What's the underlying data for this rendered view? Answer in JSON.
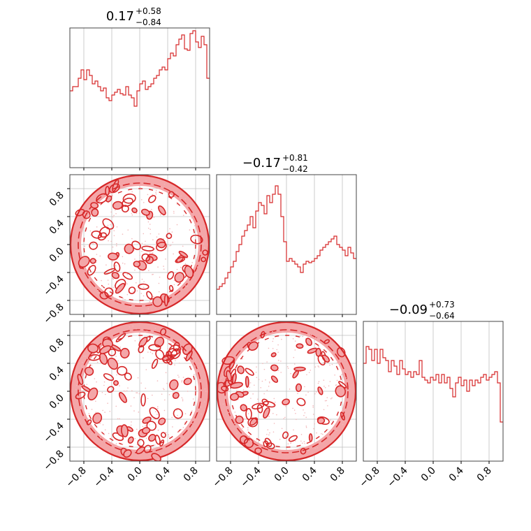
{
  "chart_data": {
    "type": "corner",
    "color": "#d62728",
    "fill_color": "#f4a6a8",
    "tick_values": [
      -0.8,
      -0.4,
      0.0,
      0.4,
      0.8
    ],
    "tick_labels": [
      "−0.8",
      "−0.4",
      "0.0",
      "0.4",
      "0.8"
    ],
    "range": [
      -1.0,
      1.0
    ],
    "grid": true,
    "titles": [
      {
        "value": "0.17",
        "plus": "+0.58",
        "minus": "−0.84"
      },
      {
        "value": "−0.17",
        "plus": "+0.81",
        "minus": "−0.42"
      },
      {
        "value": "−0.09",
        "plus": "+0.73",
        "minus": "−0.64"
      }
    ],
    "histograms": [
      {
        "bins": 50,
        "counts": [
          0.55,
          0.58,
          0.58,
          0.64,
          0.7,
          0.63,
          0.7,
          0.66,
          0.6,
          0.62,
          0.58,
          0.55,
          0.57,
          0.5,
          0.48,
          0.52,
          0.54,
          0.56,
          0.53,
          0.52,
          0.58,
          0.52,
          0.5,
          0.44,
          0.55,
          0.6,
          0.62,
          0.56,
          0.58,
          0.6,
          0.64,
          0.66,
          0.7,
          0.72,
          0.7,
          0.78,
          0.82,
          0.8,
          0.88,
          0.92,
          0.95,
          0.85,
          0.84,
          0.96,
          0.98,
          0.9,
          0.86,
          0.94,
          0.88,
          0.64
        ]
      },
      {
        "bins": 50,
        "counts": [
          0.18,
          0.2,
          0.22,
          0.26,
          0.3,
          0.34,
          0.38,
          0.45,
          0.5,
          0.56,
          0.6,
          0.64,
          0.7,
          0.62,
          0.74,
          0.8,
          0.78,
          0.72,
          0.85,
          0.8,
          0.86,
          0.92,
          0.86,
          0.7,
          0.52,
          0.38,
          0.4,
          0.38,
          0.36,
          0.34,
          0.3,
          0.36,
          0.38,
          0.37,
          0.38,
          0.4,
          0.42,
          0.46,
          0.48,
          0.5,
          0.52,
          0.54,
          0.56,
          0.5,
          0.48,
          0.46,
          0.42,
          0.48,
          0.44,
          0.4
        ]
      },
      {
        "bins": 50,
        "counts": [
          0.7,
          0.82,
          0.8,
          0.72,
          0.8,
          0.7,
          0.8,
          0.74,
          0.72,
          0.64,
          0.72,
          0.68,
          0.62,
          0.72,
          0.66,
          0.62,
          0.64,
          0.6,
          0.64,
          0.62,
          0.72,
          0.6,
          0.58,
          0.56,
          0.6,
          0.58,
          0.62,
          0.56,
          0.62,
          0.56,
          0.6,
          0.52,
          0.46,
          0.56,
          0.6,
          0.54,
          0.58,
          0.5,
          0.58,
          0.54,
          0.58,
          0.56,
          0.6,
          0.62,
          0.58,
          0.6,
          0.62,
          0.64,
          0.56,
          0.28
        ]
      }
    ]
  }
}
